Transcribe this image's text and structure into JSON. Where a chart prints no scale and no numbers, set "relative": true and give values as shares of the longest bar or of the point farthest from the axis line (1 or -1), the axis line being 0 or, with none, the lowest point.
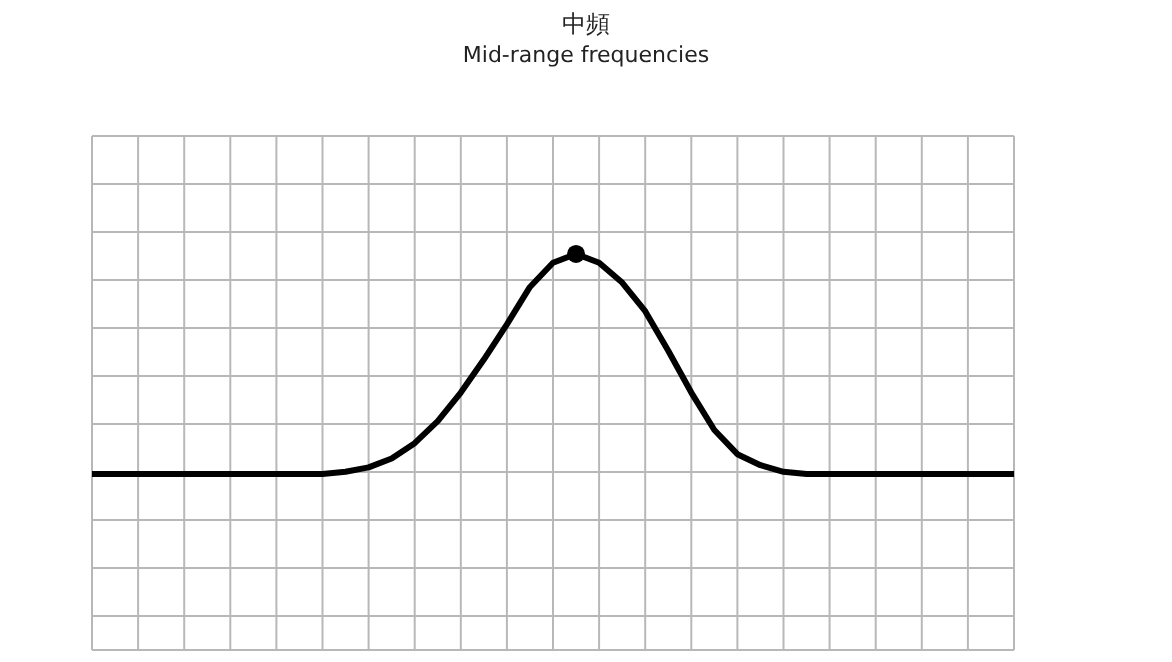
{
  "chart_data": {
    "type": "line",
    "title": "中頻",
    "subtitle": "Mid-range frequencies",
    "relative": true,
    "grid": true,
    "legend": false,
    "categories": [
      null,
      null,
      null,
      null,
      null,
      null,
      null,
      null,
      null,
      null,
      null,
      null,
      null,
      null,
      null,
      null,
      null,
      null,
      null,
      null,
      null,
      null,
      null,
      null,
      null,
      null,
      null,
      null,
      null,
      null,
      null,
      null,
      null,
      null,
      null,
      null,
      null,
      null,
      null,
      null,
      null
    ],
    "series": [
      {
        "color": "#000000",
        "values": [
          0,
          0,
          0,
          0,
          0,
          0,
          0,
          0,
          0,
          0,
          0,
          0.01,
          0.03,
          0.07,
          0.14,
          0.24,
          0.37,
          0.52,
          0.68,
          0.85,
          0.96,
          1,
          0.96,
          0.87,
          0.74,
          0.56,
          0.37,
          0.2,
          0.09,
          0.04,
          0.01,
          0,
          0,
          0,
          0,
          0,
          0,
          0,
          0,
          0,
          0
        ]
      }
    ]
  }
}
